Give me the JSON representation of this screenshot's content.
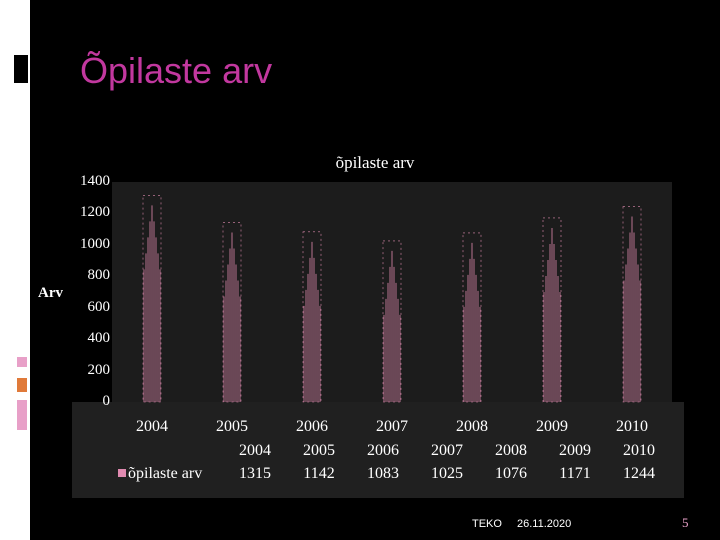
{
  "slide": {
    "title": "Õpilaste arv",
    "footer_left": "TEKO",
    "footer_date": "26.11.2020",
    "page_number": "5"
  },
  "colors": {
    "title": "#c2389f",
    "bars": "#e08ab0",
    "accent_pink": "#e8a0c8",
    "accent_orange": "#e07a3a"
  },
  "chart_data": {
    "type": "bar",
    "title": "õpilaste arv",
    "ylabel": "Arv",
    "xlabel": "",
    "ylim": [
      0,
      1400
    ],
    "yticks": [
      "0",
      "200",
      "400",
      "600",
      "800",
      "1000",
      "1200",
      "1400"
    ],
    "categories": [
      "2004",
      "2005",
      "2006",
      "2007",
      "2008",
      "2009",
      "2010"
    ],
    "series": [
      {
        "name": "õpilaste arv",
        "values": [
          1315,
          1142,
          1083,
          1025,
          1076,
          1171,
          1244
        ]
      }
    ],
    "legend": "bottom-left, in data table",
    "data_table": {
      "header": [
        "2004",
        "2005",
        "2006",
        "2007",
        "2008",
        "2009",
        "2010"
      ],
      "row_label": "õpilaste arv",
      "values": [
        "1315",
        "1142",
        "1083",
        "1025",
        "1076",
        "1171",
        "1244"
      ]
    }
  }
}
